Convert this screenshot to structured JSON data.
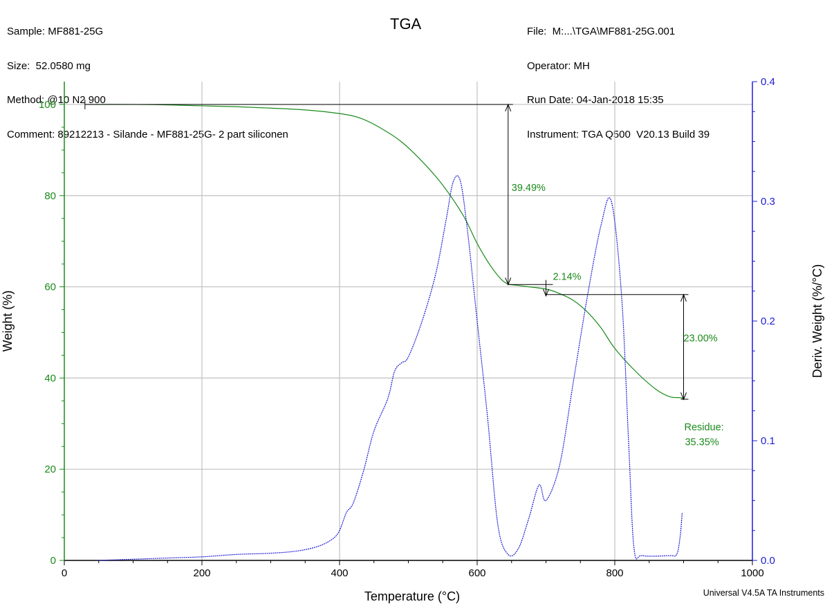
{
  "header": {
    "left": [
      "Sample: MF881-25G",
      "Size:  52.0580 mg",
      "Method: @10 N2 900",
      "Comment: 89212213 - Silande - MF881-25G- 2 part siliconen"
    ],
    "right": [
      "File:  M:...\\TGA\\MF881-25G.001",
      "Operator: MH",
      "Run Date: 04-Jan-2018 15:35",
      "Instrument: TGA Q500  V20.13 Build 39"
    ],
    "title": "TGA"
  },
  "footer": "Universal V4.5A TA Instruments",
  "colors": {
    "weight": "#1a8a1a",
    "deriv": "#1c1cd6",
    "grid": "#c0c0c0",
    "annotation": "#000000"
  },
  "chart_data": {
    "type": "line",
    "title": "TGA",
    "xlabel": "Temperature (°C)",
    "ylabel": "Weight (%)",
    "y2label": "Deriv. Weight (%/°C)",
    "xlim": [
      0,
      1000
    ],
    "ylim": [
      0,
      105
    ],
    "y2lim": [
      0,
      0.4
    ],
    "xticks": [
      0,
      200,
      400,
      600,
      800,
      1000
    ],
    "yticks": [
      0,
      20,
      40,
      60,
      80,
      100
    ],
    "y2ticks": [
      "0.0",
      "0.1",
      "0.2",
      "0.3",
      "0.4"
    ],
    "grid": true,
    "series": [
      {
        "axis": "left",
        "points": [
          [
            30,
            100
          ],
          [
            100,
            100
          ],
          [
            150,
            99.9
          ],
          [
            200,
            99.7
          ],
          [
            250,
            99.5
          ],
          [
            300,
            99.2
          ],
          [
            350,
            98.8
          ],
          [
            400,
            98
          ],
          [
            430,
            97
          ],
          [
            460,
            94.8
          ],
          [
            490,
            91.8
          ],
          [
            520,
            87.5
          ],
          [
            550,
            82.3
          ],
          [
            580,
            75.6
          ],
          [
            600,
            69.5
          ],
          [
            620,
            64.5
          ],
          [
            640,
            61
          ],
          [
            660,
            60.3
          ],
          [
            700,
            59.5
          ],
          [
            720,
            58.5
          ],
          [
            740,
            57
          ],
          [
            760,
            54.5
          ],
          [
            780,
            51
          ],
          [
            800,
            46.5
          ],
          [
            830,
            41.5
          ],
          [
            860,
            37.5
          ],
          [
            880,
            35.9
          ],
          [
            895,
            35.7
          ],
          [
            900,
            35.5
          ]
        ]
      },
      {
        "axis": "right",
        "points": [
          [
            50,
            0
          ],
          [
            100,
            0.001
          ],
          [
            150,
            0.002
          ],
          [
            200,
            0.003
          ],
          [
            250,
            0.005
          ],
          [
            300,
            0.006
          ],
          [
            340,
            0.008
          ],
          [
            370,
            0.012
          ],
          [
            390,
            0.018
          ],
          [
            400,
            0.025
          ],
          [
            410,
            0.04
          ],
          [
            420,
            0.048
          ],
          [
            435,
            0.075
          ],
          [
            450,
            0.108
          ],
          [
            470,
            0.135
          ],
          [
            480,
            0.158
          ],
          [
            490,
            0.165
          ],
          [
            500,
            0.17
          ],
          [
            520,
            0.2
          ],
          [
            540,
            0.24
          ],
          [
            555,
            0.285
          ],
          [
            565,
            0.316
          ],
          [
            575,
            0.318
          ],
          [
            585,
            0.28
          ],
          [
            600,
            0.2
          ],
          [
            615,
            0.12
          ],
          [
            630,
            0.03
          ],
          [
            645,
            0.005
          ],
          [
            660,
            0.01
          ],
          [
            675,
            0.035
          ],
          [
            690,
            0.063
          ],
          [
            700,
            0.05
          ],
          [
            720,
            0.08
          ],
          [
            740,
            0.15
          ],
          [
            760,
            0.22
          ],
          [
            780,
            0.28
          ],
          [
            795,
            0.3
          ],
          [
            810,
            0.22
          ],
          [
            820,
            0.1
          ],
          [
            828,
            0.01
          ],
          [
            840,
            0.004
          ],
          [
            880,
            0.004
          ],
          [
            890,
            0.005
          ],
          [
            895,
            0.02
          ],
          [
            898,
            0.04
          ]
        ]
      }
    ],
    "annotations": [
      {
        "text": "39.49%",
        "x": 650,
        "y": 81
      },
      {
        "text": "2.14%",
        "x": 710,
        "y": 61.5
      },
      {
        "text": "23.00%",
        "x": 900,
        "y": 48
      },
      {
        "text": "Residue:",
        "x": 901,
        "y": 28.5
      },
      {
        "text": "35.35%",
        "x": 902,
        "y": 25.3
      }
    ],
    "markers": {
      "baseline": [
        30,
        652,
        100
      ],
      "vertical1": [
        645,
        100,
        60.5
      ],
      "step2_h": [
        644,
        710,
        60.5
      ],
      "step2_v": [
        700,
        61.5,
        58.0
      ],
      "step3_h": [
        700,
        907,
        58.3
      ],
      "vertical3": [
        900,
        58.3,
        35.3
      ],
      "residue_h": [
        896,
        907,
        35.35
      ]
    }
  }
}
